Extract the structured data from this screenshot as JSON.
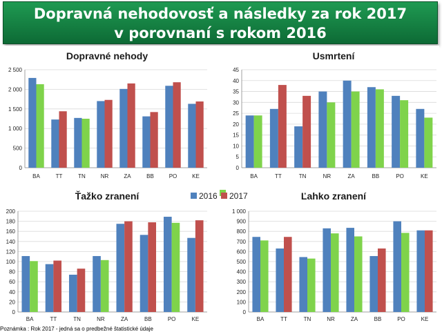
{
  "title": {
    "line1": "Dopravná nehodovosť a následky za rok 2017",
    "line2": "v porovnaní s rokom 2016"
  },
  "legend": {
    "label_2016": "2016",
    "label_2017": "2017"
  },
  "footnote": "Poznámka : Rok 2017 - jedná sa o predbežné štatistické údaje",
  "colors": {
    "blue": "#4f81bd",
    "green": "#7fd34b",
    "red": "#c0504d",
    "banner": "#138a45"
  },
  "chart_data": [
    {
      "type": "bar",
      "title": "Dopravné nehody",
      "categories": [
        "BA",
        "TT",
        "TN",
        "NR",
        "ZA",
        "BB",
        "PO",
        "KE"
      ],
      "ylim": [
        0,
        2500
      ],
      "yticks": [
        0,
        500,
        1000,
        1500,
        2000,
        2500
      ],
      "ytick_labels": [
        "0",
        "500",
        "1 000",
        "1 500",
        "2 000",
        "2 500"
      ],
      "series": [
        {
          "name": "2016",
          "values": [
            2290,
            1230,
            1270,
            1700,
            2010,
            1310,
            2090,
            1630
          ]
        },
        {
          "name": "2017",
          "values": [
            2130,
            1440,
            1250,
            1730,
            2150,
            1420,
            2180,
            1690
          ]
        }
      ],
      "bar_colors": [
        [
          "blue",
          "blue",
          "blue",
          "blue",
          "blue",
          "blue",
          "blue",
          "blue"
        ],
        [
          "green",
          "red",
          "green",
          "red",
          "red",
          "red",
          "red",
          "red"
        ]
      ]
    },
    {
      "type": "bar",
      "title": "Usmrtení",
      "categories": [
        "BA",
        "TT",
        "TN",
        "NR",
        "ZA",
        "BB",
        "PO",
        "KE"
      ],
      "ylim": [
        0,
        45
      ],
      "yticks": [
        0,
        5,
        10,
        15,
        20,
        25,
        30,
        35,
        40,
        45
      ],
      "ytick_labels": [
        "0",
        "5",
        "10",
        "15",
        "20",
        "25",
        "30",
        "35",
        "40",
        "45"
      ],
      "series": [
        {
          "name": "2016",
          "values": [
            24,
            27,
            19,
            35,
            40,
            37,
            33,
            27
          ]
        },
        {
          "name": "2017",
          "values": [
            24,
            38,
            33,
            30,
            35,
            36,
            31,
            23
          ]
        }
      ],
      "bar_colors": [
        [
          "blue",
          "blue",
          "blue",
          "blue",
          "blue",
          "blue",
          "blue",
          "blue"
        ],
        [
          "green",
          "red",
          "red",
          "green",
          "green",
          "green",
          "green",
          "green"
        ]
      ]
    },
    {
      "type": "bar",
      "title": "Ťažko zranení",
      "categories": [
        "BA",
        "TT",
        "TN",
        "NR",
        "ZA",
        "BB",
        "PO",
        "KE"
      ],
      "ylim": [
        0,
        200
      ],
      "yticks": [
        0,
        20,
        40,
        60,
        80,
        100,
        120,
        140,
        160,
        180,
        200
      ],
      "ytick_labels": [
        "0",
        "20",
        "40",
        "60",
        "80",
        "100",
        "120",
        "140",
        "160",
        "180",
        "200"
      ],
      "series": [
        {
          "name": "2016",
          "values": [
            111,
            95,
            74,
            111,
            175,
            153,
            189,
            147
          ]
        },
        {
          "name": "2017",
          "values": [
            101,
            102,
            86,
            103,
            180,
            178,
            177,
            182
          ]
        }
      ],
      "bar_colors": [
        [
          "blue",
          "blue",
          "blue",
          "blue",
          "blue",
          "blue",
          "blue",
          "blue"
        ],
        [
          "green",
          "red",
          "red",
          "green",
          "red",
          "red",
          "green",
          "red"
        ]
      ]
    },
    {
      "type": "bar",
      "title": "Ľahko zranení",
      "categories": [
        "BA",
        "TT",
        "TN",
        "NR",
        "ZA",
        "BB",
        "PO",
        "KE"
      ],
      "ylim": [
        0,
        1000
      ],
      "yticks": [
        0,
        100,
        200,
        300,
        400,
        500,
        600,
        700,
        800,
        900,
        1000
      ],
      "ytick_labels": [
        "0",
        "100",
        "200",
        "300",
        "400",
        "500",
        "600",
        "700",
        "800",
        "900",
        "1 000"
      ],
      "series": [
        {
          "name": "2016",
          "values": [
            745,
            630,
            545,
            830,
            835,
            555,
            900,
            810
          ]
        },
        {
          "name": "2017",
          "values": [
            710,
            745,
            530,
            780,
            750,
            630,
            785,
            810
          ]
        }
      ],
      "bar_colors": [
        [
          "blue",
          "blue",
          "blue",
          "blue",
          "blue",
          "blue",
          "blue",
          "blue"
        ],
        [
          "green",
          "red",
          "green",
          "green",
          "green",
          "red",
          "green",
          "red"
        ]
      ]
    }
  ]
}
